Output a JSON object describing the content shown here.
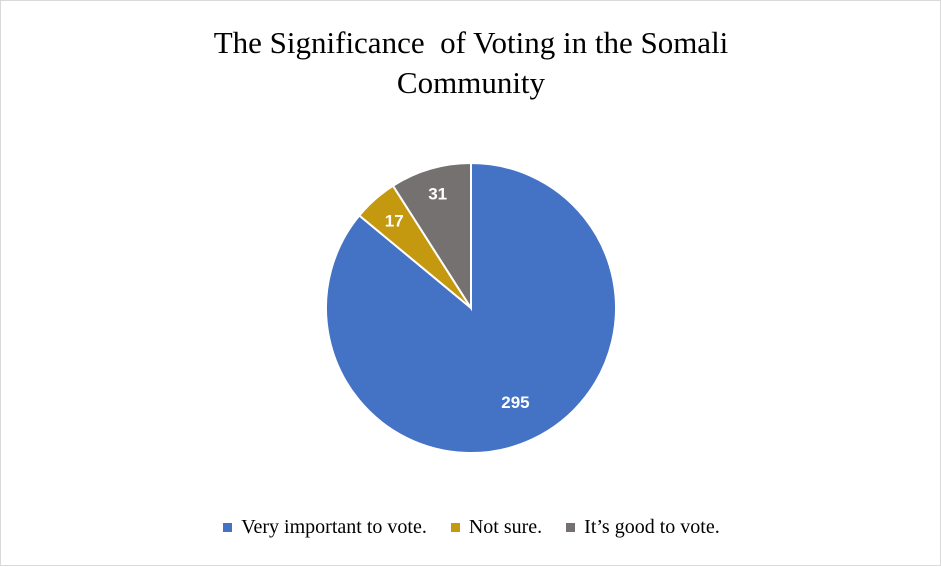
{
  "chart_data": {
    "type": "pie",
    "title_lines": [
      "The Significance  of Voting in the Somali",
      "Community"
    ],
    "categories": [
      "Very important to vote.",
      "Not sure.",
      "It’s good to vote."
    ],
    "values": [
      295,
      17,
      31
    ],
    "colors": [
      "#4472c4",
      "#c4980f",
      "#767171"
    ],
    "data_labels": [
      "295",
      "17",
      "31"
    ],
    "legend_position": "bottom"
  }
}
